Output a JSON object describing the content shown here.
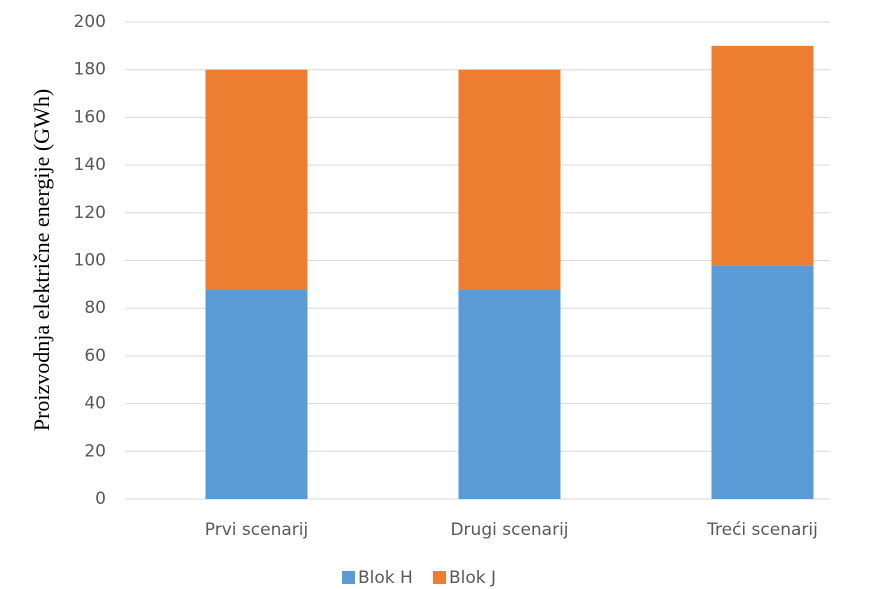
{
  "chart_data": {
    "type": "stacked_bar",
    "y_label": "Proizvodnja električne energije (GWh)",
    "categories": [
      "Prvi scenarij",
      "Drugi scenarij",
      "Treći scenarij"
    ],
    "series": [
      {
        "name": "Blok H",
        "color": "#5b9bd5",
        "values": [
          88,
          88,
          98
        ]
      },
      {
        "name": "Blok J",
        "color": "#ed7d31",
        "values": [
          92,
          92,
          92
        ]
      }
    ],
    "ylim": [
      0,
      200
    ],
    "yticks": [
      0,
      20,
      40,
      60,
      80,
      100,
      120,
      140,
      160,
      180,
      200
    ],
    "grid": true,
    "legend": "bottom"
  }
}
